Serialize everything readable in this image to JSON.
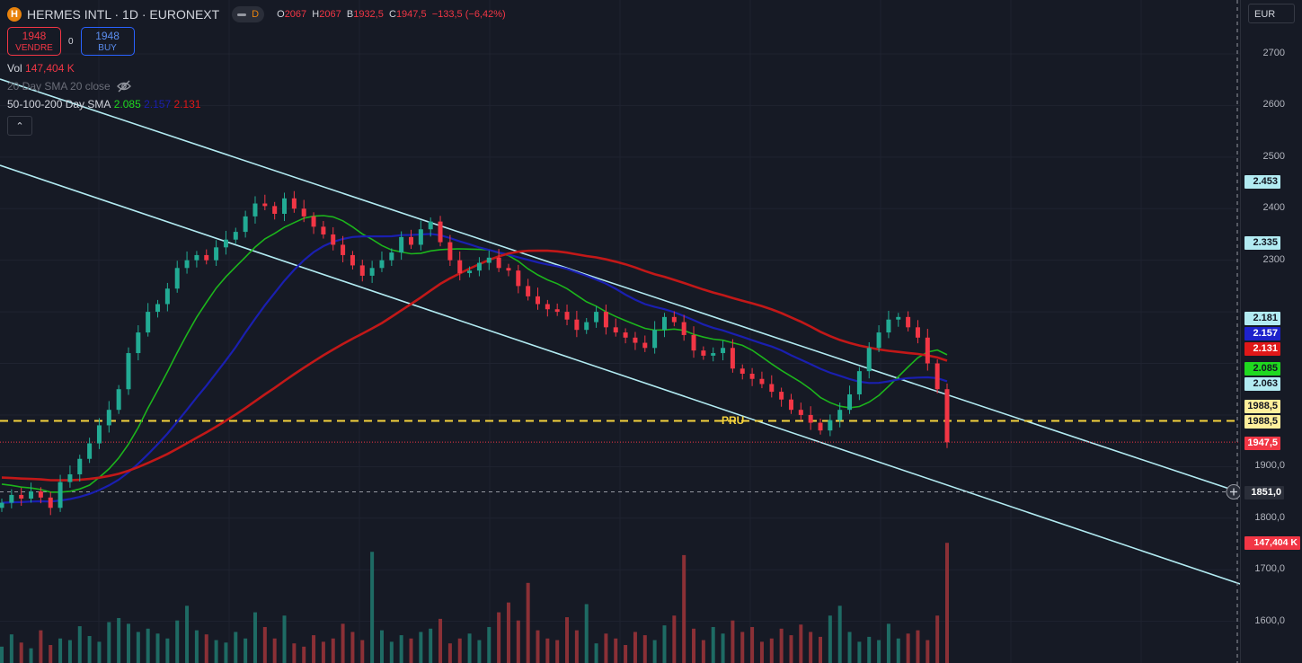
{
  "symbol": {
    "name": "HERMES INTL · 1D · EURONEXT",
    "logo_letter": "H",
    "delay_badge": "D"
  },
  "ohlc": {
    "o_label": "O",
    "o": "2067",
    "h_label": "H",
    "h": "2067",
    "b_label": "B",
    "b": "1932,5",
    "c_label": "C",
    "c": "1947,5",
    "change": "−133,5 (−6,42%)"
  },
  "trade": {
    "sell_price": "1948",
    "sell_label": "VENDRE",
    "spread": "0",
    "buy_price": "1948",
    "buy_label": "BUY"
  },
  "indicators": {
    "vol_label": "Vol",
    "vol_value": "147,404 K",
    "sma20_label": "20 Day SMA 20 close",
    "sma_multi_label": "50-100-200 Day SMA",
    "sma50": "2.085",
    "sma100": "2.157",
    "sma200": "2.131"
  },
  "currency": "EUR",
  "pru_label": "PRU",
  "axis_ticks": [
    "2700",
    "2600",
    "2500",
    "2400",
    "2300",
    "1900,0",
    "1800,0",
    "1700,0",
    "1600,0"
  ],
  "price_tags": [
    {
      "text": "2.453",
      "color": "#b2ebf2"
    },
    {
      "text": "2.335",
      "color": "#b2ebf2"
    },
    {
      "text": "2.181",
      "color": "#b2ebf2"
    },
    {
      "text": "2.157",
      "color": "#1e22cc"
    },
    {
      "text": "2.131",
      "color": "#e01818"
    },
    {
      "text": "2.085",
      "color": "#1fd91f"
    },
    {
      "text": "2.063",
      "color": "#b2ebf2"
    },
    {
      "text": "1988,5",
      "color": "#ffef9c"
    },
    {
      "text": "1988,5",
      "color": "#ffef9c"
    },
    {
      "text": "1947,5",
      "color": "#f23645"
    },
    {
      "text": "1851,0",
      "color": "#2a2e39"
    },
    {
      "text": "147,404 K",
      "color": "#f23645"
    }
  ],
  "colors": {
    "up": "#22ab94",
    "down": "#f23645",
    "sma50": "#1cb51c",
    "sma100": "#1a1fb0",
    "sma200": "#c21818",
    "channel": "#b2ebf2",
    "pru": "#f5d33d"
  },
  "chart_data": {
    "type": "candlestick",
    "ylim": [
      1550,
      2780
    ],
    "current_price": 1947.5,
    "pru_level": 1988.5,
    "crosshair_level": 1851.0,
    "candles_close": [
      1830,
      1845,
      1838,
      1852,
      1840,
      1820,
      1870,
      1885,
      1915,
      1945,
      1980,
      2010,
      2050,
      2120,
      2160,
      2200,
      2215,
      2245,
      2285,
      2300,
      2310,
      2300,
      2325,
      2340,
      2355,
      2385,
      2410,
      2405,
      2390,
      2420,
      2400,
      2385,
      2365,
      2350,
      2330,
      2310,
      2290,
      2270,
      2285,
      2300,
      2315,
      2345,
      2330,
      2360,
      2375,
      2335,
      2300,
      2275,
      2280,
      2295,
      2305,
      2285,
      2280,
      2250,
      2230,
      2215,
      2205,
      2200,
      2185,
      2165,
      2180,
      2200,
      2170,
      2160,
      2150,
      2140,
      2130,
      2165,
      2190,
      2180,
      2155,
      2125,
      2115,
      2120,
      2130,
      2090,
      2080,
      2070,
      2060,
      2045,
      2030,
      2010,
      2000,
      1985,
      1970,
      1990,
      2010,
      2040,
      2085,
      2130,
      2160,
      2185,
      2190,
      2170,
      2150,
      2100,
      2050,
      1947
    ]
  },
  "volume_data": {
    "values": [
      20,
      35,
      25,
      18,
      40,
      22,
      30,
      28,
      45,
      33,
      26,
      50,
      55,
      48,
      38,
      42,
      36,
      30,
      52,
      70,
      40,
      35,
      28,
      25,
      38,
      30,
      62,
      44,
      30,
      58,
      24,
      20,
      34,
      26,
      30,
      48,
      38,
      28,
      136,
      40,
      26,
      34,
      30,
      38,
      42,
      54,
      24,
      30,
      36,
      28,
      44,
      62,
      74,
      52,
      98,
      40,
      30,
      28,
      56,
      40,
      72,
      24,
      36,
      30,
      22,
      38,
      34,
      28,
      46,
      58,
      132,
      42,
      28,
      44,
      36,
      52,
      38,
      44,
      26,
      30,
      42,
      34,
      47,
      38,
      32,
      58,
      70,
      38,
      26,
      32,
      28,
      48,
      30,
      36,
      40,
      28,
      58,
      147
    ]
  }
}
